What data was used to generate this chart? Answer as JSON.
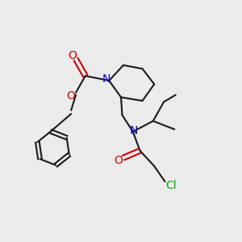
{
  "background_color": "#ebebeb",
  "bond_color": "#1a1a1a",
  "N_color": "#0000cc",
  "O_color": "#cc0000",
  "Cl_color": "#00aa00",
  "line_width": 1.5,
  "figsize": [
    3.0,
    3.0
  ],
  "dpi": 100,
  "xlim": [
    0,
    10
  ],
  "ylim": [
    0,
    10
  ]
}
